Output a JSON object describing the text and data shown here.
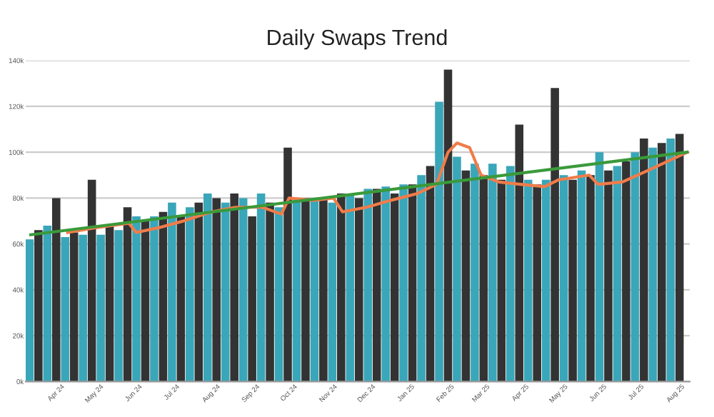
{
  "chart_data": {
    "type": "bar",
    "title": "Daily Swaps Trend",
    "xlim": [
      "2024-03-08",
      "2025-08-12"
    ],
    "xticks": [
      {
        "value": "2024-04-01",
        "label": "Apr 24"
      },
      {
        "value": "2024-05-01",
        "label": "May 24"
      },
      {
        "value": "2024-06-01",
        "label": "Jun 24"
      },
      {
        "value": "2024-07-01",
        "label": "Jul 24"
      },
      {
        "value": "2024-08-01",
        "label": "Aug 24"
      },
      {
        "value": "2024-09-01",
        "label": "Sep 24"
      },
      {
        "value": "2024-10-01",
        "label": "Oct 24"
      },
      {
        "value": "2024-11-01",
        "label": "Nov 24"
      },
      {
        "value": "2024-12-01",
        "label": "Dec 24"
      },
      {
        "value": "2025-01-01",
        "label": "Jan 25"
      },
      {
        "value": "2025-02-01",
        "label": "Feb 25"
      },
      {
        "value": "2025-03-01",
        "label": "Mar 25"
      },
      {
        "value": "2025-04-01",
        "label": "Apr 25"
      },
      {
        "value": "2025-05-01",
        "label": "May 25"
      },
      {
        "value": "2025-06-01",
        "label": "Jun 25"
      },
      {
        "value": "2025-07-01",
        "label": "Jul 25"
      },
      {
        "value": "2025-08-01",
        "label": "Aug 25"
      }
    ],
    "ylim": [
      0,
      140000
    ],
    "yticks": [
      {
        "value": 0,
        "label": "0k"
      },
      {
        "value": 20000,
        "label": "20k"
      },
      {
        "value": 40000,
        "label": "40k"
      },
      {
        "value": 60000,
        "label": "60k"
      },
      {
        "value": 80000,
        "label": "80k"
      },
      {
        "value": 100000,
        "label": "100k"
      },
      {
        "value": 120000,
        "label": "120k"
      },
      {
        "value": 140000,
        "label": "140k"
      }
    ],
    "grid": "y",
    "series": [
      {
        "x": [
          "2024-03-11",
          "2024-03-18",
          "2024-03-25",
          "2024-04-01",
          "2024-04-08",
          "2024-04-15",
          "2024-04-22",
          "2024-04-29",
          "2024-05-06",
          "2024-05-13",
          "2024-05-20",
          "2024-05-27",
          "2024-06-03",
          "2024-06-10",
          "2024-06-17",
          "2024-06-24",
          "2024-07-01",
          "2024-07-08",
          "2024-07-15",
          "2024-07-22",
          "2024-07-29",
          "2024-08-05",
          "2024-08-12",
          "2024-08-19",
          "2024-08-26",
          "2024-09-02",
          "2024-09-09",
          "2024-09-16",
          "2024-09-23",
          "2024-09-30",
          "2024-10-07",
          "2024-10-14",
          "2024-10-21",
          "2024-10-28",
          "2024-11-04",
          "2024-11-11",
          "2024-11-18",
          "2024-11-25",
          "2024-12-02",
          "2024-12-09",
          "2024-12-16",
          "2024-12-23",
          "2024-12-30",
          "2025-01-06",
          "2025-01-13",
          "2025-01-20",
          "2025-01-27",
          "2025-02-03",
          "2025-02-10",
          "2025-02-17",
          "2025-02-24",
          "2025-03-03",
          "2025-03-10",
          "2025-03-17",
          "2025-03-24",
          "2025-03-31",
          "2025-04-07",
          "2025-04-14",
          "2025-04-21",
          "2025-04-28",
          "2025-05-05",
          "2025-05-12",
          "2025-05-19",
          "2025-05-26",
          "2025-06-02",
          "2025-06-09",
          "2025-06-16",
          "2025-06-23",
          "2025-06-30",
          "2025-07-07",
          "2025-07-14",
          "2025-07-21",
          "2025-07-28",
          "2025-08-04"
        ],
        "values": [
          62000,
          66000,
          68000,
          80000,
          63000,
          65000,
          64000,
          88000,
          64000,
          68000,
          66000,
          76000,
          72000,
          70000,
          72000,
          74000,
          78000,
          72000,
          76000,
          78000,
          82000,
          80000,
          78000,
          82000,
          80000,
          72000,
          82000,
          78000,
          76000,
          102000,
          80000,
          80000,
          80000,
          80000,
          78000,
          82000,
          82000,
          80000,
          84000,
          84000,
          85000,
          82000,
          86000,
          86000,
          90000,
          94000,
          122000,
          136000,
          98000,
          92000,
          95000,
          90000,
          95000,
          88000,
          94000,
          112000,
          88000,
          86000,
          88000,
          128000,
          90000,
          88000,
          92000,
          90000,
          100000,
          92000,
          94000,
          96000,
          100000,
          106000,
          102000,
          104000,
          106000,
          108000
        ],
        "colors": [
          "#3aa6b9",
          "#333333",
          "#3aa6b9",
          "#333333",
          "#3aa6b9",
          "#333333",
          "#3aa6b9",
          "#333333",
          "#3aa6b9",
          "#333333",
          "#3aa6b9",
          "#333333",
          "#3aa6b9",
          "#333333",
          "#3aa6b9",
          "#333333",
          "#3aa6b9",
          "#333333",
          "#3aa6b9",
          "#333333",
          "#3aa6b9",
          "#333333",
          "#3aa6b9",
          "#333333",
          "#3aa6b9",
          "#333333",
          "#3aa6b9",
          "#333333",
          "#3aa6b9",
          "#333333",
          "#3aa6b9",
          "#333333",
          "#3aa6b9",
          "#333333",
          "#3aa6b9",
          "#333333",
          "#3aa6b9",
          "#333333",
          "#3aa6b9",
          "#333333",
          "#3aa6b9",
          "#333333",
          "#3aa6b9",
          "#333333",
          "#3aa6b9",
          "#333333",
          "#3aa6b9",
          "#333333",
          "#3aa6b9",
          "#333333",
          "#3aa6b9",
          "#333333",
          "#3aa6b9",
          "#333333",
          "#3aa6b9",
          "#333333",
          "#3aa6b9",
          "#333333",
          "#3aa6b9",
          "#333333",
          "#3aa6b9",
          "#333333",
          "#3aa6b9",
          "#333333",
          "#3aa6b9",
          "#333333",
          "#3aa6b9",
          "#333333",
          "#3aa6b9",
          "#333333",
          "#3aa6b9",
          "#333333",
          "#3aa6b9",
          "#333333"
        ]
      },
      {
        "type": "line",
        "color": "#f07c4a",
        "x": [
          "2024-04-10",
          "2024-05-01",
          "2024-05-28",
          "2024-06-03",
          "2024-06-20",
          "2024-07-10",
          "2024-08-01",
          "2024-08-20",
          "2024-09-10",
          "2024-09-25",
          "2024-10-01",
          "2024-10-20",
          "2024-11-05",
          "2024-11-12",
          "2024-12-01",
          "2024-12-20",
          "2025-01-10",
          "2025-01-25",
          "2025-02-03",
          "2025-02-10",
          "2025-02-20",
          "2025-03-01",
          "2025-03-15",
          "2025-04-01",
          "2025-04-20",
          "2025-05-01",
          "2025-05-25",
          "2025-06-01",
          "2025-06-20",
          "2025-07-10",
          "2025-08-10"
        ],
        "values": [
          65000,
          67000,
          69000,
          65000,
          67000,
          70000,
          74000,
          76000,
          76000,
          73000,
          80000,
          79000,
          80000,
          74000,
          76000,
          79000,
          82000,
          86000,
          100000,
          104000,
          102000,
          90000,
          87000,
          86000,
          85000,
          88000,
          90000,
          86000,
          87000,
          92000,
          100000
        ]
      },
      {
        "type": "line",
        "color": "#3a9a3a",
        "x": [
          "2024-03-12",
          "2025-08-10"
        ],
        "values": [
          64000,
          100000
        ]
      }
    ]
  }
}
